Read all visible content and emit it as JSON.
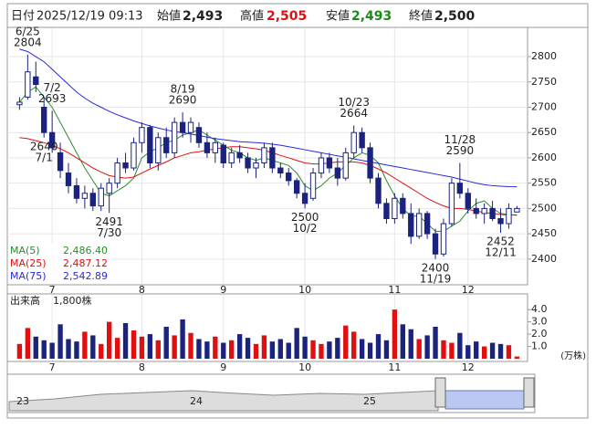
{
  "header": {
    "date_label": "日付",
    "date": "2025/12/19 09:13",
    "open_label": "始値",
    "open": "2,493",
    "high_label": "高値",
    "high": "2,505",
    "low_label": "安値",
    "low": "2,493",
    "close_label": "終値",
    "close": "2,500"
  },
  "chart_data": [
    {
      "type": "candlestick",
      "up_color": "#ffffff",
      "down_color": "#1a237e",
      "edge_color": "#1a237e",
      "x": [
        0,
        1,
        2,
        3,
        4,
        5,
        6,
        7,
        8,
        9,
        10,
        11,
        12,
        13,
        14,
        15,
        16,
        17,
        18,
        19,
        20,
        21,
        22,
        23,
        24,
        25,
        26,
        27,
        28,
        29,
        30,
        31,
        32,
        33,
        34,
        35,
        36,
        37,
        38,
        39,
        40,
        41,
        42,
        43,
        44,
        45,
        46,
        47,
        48,
        49,
        50,
        51,
        52,
        53,
        54,
        55,
        56,
        57,
        58,
        59,
        60,
        61
      ],
      "xlim": [
        -1.5,
        62.3
      ],
      "xticks": [
        {
          "value": 4,
          "label": "7"
        },
        {
          "value": 15,
          "label": "8"
        },
        {
          "value": 25,
          "label": "9"
        },
        {
          "value": 35,
          "label": "10"
        },
        {
          "value": 46,
          "label": "11"
        },
        {
          "value": 55,
          "label": "12"
        }
      ],
      "ohlc": [
        [
          2705,
          2720,
          2695,
          2710
        ],
        [
          2720,
          2804,
          2715,
          2770
        ],
        [
          2760,
          2790,
          2730,
          2745
        ],
        [
          2700,
          2720,
          2640,
          2650
        ],
        [
          2650,
          2693,
          2610,
          2620
        ],
        [
          2610,
          2630,
          2560,
          2575
        ],
        [
          2570,
          2590,
          2530,
          2545
        ],
        [
          2545,
          2560,
          2510,
          2520
        ],
        [
          2520,
          2545,
          2500,
          2530
        ],
        [
          2530,
          2540,
          2495,
          2505
        ],
        [
          2505,
          2550,
          2495,
          2540
        ],
        [
          2530,
          2560,
          2491,
          2550
        ],
        [
          2550,
          2600,
          2540,
          2590
        ],
        [
          2590,
          2610,
          2570,
          2580
        ],
        [
          2580,
          2640,
          2575,
          2630
        ],
        [
          2630,
          2670,
          2610,
          2660
        ],
        [
          2660,
          2665,
          2580,
          2590
        ],
        [
          2590,
          2650,
          2575,
          2640
        ],
        [
          2640,
          2660,
          2600,
          2610
        ],
        [
          2610,
          2680,
          2600,
          2670
        ],
        [
          2670,
          2690,
          2640,
          2650
        ],
        [
          2650,
          2680,
          2630,
          2670
        ],
        [
          2660,
          2670,
          2620,
          2630
        ],
        [
          2630,
          2650,
          2600,
          2610
        ],
        [
          2610,
          2640,
          2590,
          2630
        ],
        [
          2625,
          2630,
          2580,
          2590
        ],
        [
          2590,
          2620,
          2580,
          2610
        ],
        [
          2610,
          2625,
          2590,
          2600
        ],
        [
          2600,
          2610,
          2570,
          2580
        ],
        [
          2580,
          2600,
          2560,
          2590
        ],
        [
          2590,
          2630,
          2580,
          2620
        ],
        [
          2620,
          2630,
          2570,
          2580
        ],
        [
          2580,
          2590,
          2560,
          2570
        ],
        [
          2570,
          2580,
          2545,
          2555
        ],
        [
          2555,
          2560,
          2520,
          2530
        ],
        [
          2530,
          2550,
          2500,
          2510
        ],
        [
          2520,
          2580,
          2515,
          2570
        ],
        [
          2570,
          2610,
          2560,
          2600
        ],
        [
          2600,
          2610,
          2570,
          2580
        ],
        [
          2580,
          2600,
          2545,
          2560
        ],
        [
          2560,
          2620,
          2555,
          2610
        ],
        [
          2610,
          2664,
          2600,
          2650
        ],
        [
          2650,
          2660,
          2610,
          2620
        ],
        [
          2620,
          2630,
          2550,
          2560
        ],
        [
          2560,
          2570,
          2500,
          2510
        ],
        [
          2510,
          2520,
          2470,
          2480
        ],
        [
          2480,
          2530,
          2470,
          2520
        ],
        [
          2520,
          2530,
          2480,
          2490
        ],
        [
          2490,
          2510,
          2430,
          2445
        ],
        [
          2445,
          2500,
          2440,
          2490
        ],
        [
          2490,
          2495,
          2440,
          2450
        ],
        [
          2450,
          2460,
          2400,
          2410
        ],
        [
          2410,
          2480,
          2405,
          2470
        ],
        [
          2470,
          2560,
          2465,
          2550
        ],
        [
          2550,
          2590,
          2520,
          2530
        ],
        [
          2530,
          2540,
          2490,
          2500
        ],
        [
          2500,
          2520,
          2480,
          2490
        ],
        [
          2490,
          2510,
          2470,
          2500
        ],
        [
          2500,
          2515,
          2475,
          2480
        ],
        [
          2480,
          2500,
          2452,
          2470
        ],
        [
          2470,
          2510,
          2460,
          2500
        ],
        [
          2493,
          2505,
          2493,
          2500
        ]
      ],
      "ylim": [
        2351,
        2856
      ],
      "yticks": [
        2400,
        2450,
        2500,
        2550,
        2600,
        2650,
        2700,
        2750,
        2800
      ],
      "grid": true,
      "series": [
        {
          "name": "MA(5)",
          "color": "#2e8b2e",
          "last_label": "2,486.40",
          "values": [
            2710,
            2730,
            2740,
            2720,
            2700,
            2670,
            2640,
            2610,
            2580,
            2555,
            2530,
            2525,
            2535,
            2545,
            2560,
            2600,
            2612,
            2620,
            2630,
            2635,
            2645,
            2650,
            2655,
            2645,
            2635,
            2625,
            2615,
            2610,
            2600,
            2595,
            2600,
            2595,
            2590,
            2585,
            2570,
            2545,
            2535,
            2545,
            2560,
            2570,
            2585,
            2600,
            2610,
            2605,
            2590,
            2555,
            2525,
            2500,
            2485,
            2485,
            2470,
            2455,
            2455,
            2465,
            2475,
            2495,
            2510,
            2515,
            2500,
            2490,
            2488,
            2486.4
          ]
        },
        {
          "name": "MA(25)",
          "color": "#e01010",
          "last_label": "2,487.12",
          "values": [
            2640,
            2638,
            2634,
            2630,
            2625,
            2618,
            2610,
            2600,
            2590,
            2580,
            2572,
            2565,
            2562,
            2560,
            2562,
            2570,
            2578,
            2585,
            2592,
            2600,
            2605,
            2610,
            2612,
            2615,
            2618,
            2620,
            2622,
            2622,
            2620,
            2618,
            2615,
            2610,
            2605,
            2600,
            2595,
            2590,
            2588,
            2588,
            2590,
            2592,
            2592,
            2592,
            2590,
            2585,
            2578,
            2570,
            2560,
            2550,
            2540,
            2530,
            2520,
            2512,
            2505,
            2500,
            2500,
            2498,
            2495,
            2492,
            2490,
            2488,
            2487,
            2487.12
          ]
        },
        {
          "name": "MA(75)",
          "color": "#2828e0",
          "last_label": "2,542.89",
          "values": [
            2815,
            2810,
            2800,
            2790,
            2775,
            2760,
            2745,
            2730,
            2718,
            2708,
            2700,
            2692,
            2685,
            2679,
            2673,
            2668,
            2663,
            2659,
            2655,
            2652,
            2650,
            2647,
            2644,
            2641,
            2638,
            2636,
            2634,
            2632,
            2631,
            2630,
            2629,
            2627,
            2625,
            2622,
            2619,
            2616,
            2613,
            2610,
            2607,
            2604,
            2601,
            2598,
            2595,
            2592,
            2589,
            2586,
            2583,
            2580,
            2577,
            2574,
            2571,
            2568,
            2565,
            2562,
            2558,
            2554,
            2550,
            2547,
            2545,
            2544,
            2543,
            2542.89
          ]
        }
      ],
      "annotations": [
        {
          "x": 1,
          "side": "above",
          "lines": [
            "6/25",
            "2804"
          ]
        },
        {
          "x": 4,
          "side": "above",
          "lines": [
            "7/2",
            "2693"
          ]
        },
        {
          "x": 3,
          "side": "below",
          "lines": [
            "2640",
            "7/1"
          ]
        },
        {
          "x": 11,
          "side": "below",
          "lines": [
            "2491",
            "7/30"
          ]
        },
        {
          "x": 20,
          "side": "above",
          "lines": [
            "8/19",
            "2690"
          ]
        },
        {
          "x": 35,
          "side": "below",
          "lines": [
            "2500",
            "10/2"
          ]
        },
        {
          "x": 41,
          "side": "above",
          "lines": [
            "10/23",
            "2664"
          ]
        },
        {
          "x": 51,
          "side": "below",
          "lines": [
            "2400",
            "11/19"
          ]
        },
        {
          "x": 54,
          "side": "above",
          "lines": [
            "11/28",
            "2590"
          ]
        },
        {
          "x": 59,
          "side": "below",
          "lines": [
            "2452",
            "12/11"
          ]
        }
      ]
    },
    {
      "type": "volume",
      "title": "出来高",
      "last_label": "1,800株",
      "unit": "(万株)",
      "up_color": "#e01010",
      "down_color": "#1a237e",
      "values": [
        1.2,
        2.5,
        1.8,
        1.5,
        1.3,
        2.8,
        1.6,
        1.4,
        2.2,
        1.9,
        1.2,
        3.0,
        1.7,
        2.9,
        2.3,
        1.8,
        2.0,
        1.5,
        2.6,
        1.9,
        3.2,
        2.1,
        1.6,
        1.4,
        1.8,
        1.3,
        1.5,
        2.0,
        1.7,
        1.2,
        1.9,
        1.4,
        1.6,
        1.3,
        2.5,
        1.8,
        1.5,
        1.2,
        1.4,
        1.7,
        2.7,
        2.2,
        1.6,
        1.3,
        2.0,
        1.5,
        4.0,
        2.8,
        2.4,
        1.6,
        1.9,
        2.6,
        1.5,
        1.3,
        2.1,
        1.1,
        1.4,
        1.0,
        1.3,
        1.2,
        1.1,
        0.18
      ],
      "ylim": [
        0,
        5.2
      ],
      "yticks": [
        {
          "value": 1,
          "label": "1.0"
        },
        {
          "value": 2,
          "label": "2.0"
        },
        {
          "value": 3,
          "label": "3.0"
        },
        {
          "value": 4,
          "label": "4.0"
        }
      ]
    }
  ],
  "navigator": {
    "labels": [
      "23",
      "24",
      "25"
    ]
  }
}
